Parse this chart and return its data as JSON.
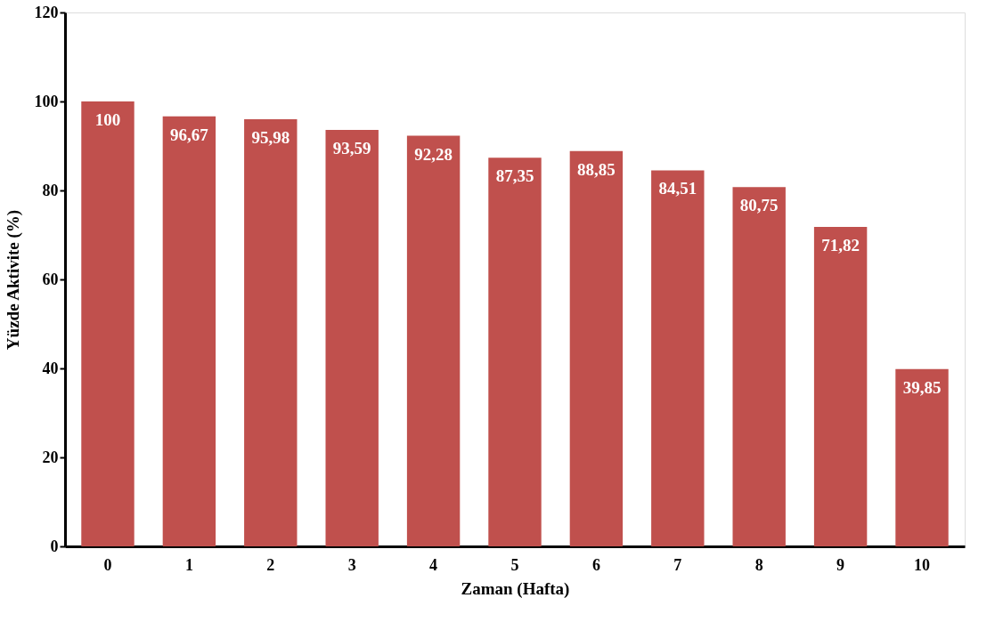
{
  "chart_data": {
    "type": "bar",
    "xlabel": "Zaman (Hafta)",
    "ylabel": "Yüzde Aktivite (%)",
    "categories": [
      "0",
      "1",
      "2",
      "3",
      "4",
      "5",
      "6",
      "7",
      "8",
      "9",
      "10"
    ],
    "values": [
      100,
      96.67,
      95.98,
      93.59,
      92.28,
      87.35,
      88.85,
      84.51,
      80.75,
      71.82,
      39.85
    ],
    "value_labels": [
      "100",
      "96,67",
      "95,98",
      "93,59",
      "92,28",
      "87,35",
      "88,85",
      "84,51",
      "80,75",
      "71,82",
      "39,85"
    ],
    "color": "#c0504d",
    "ylim": [
      0,
      120
    ],
    "yticks": [
      0,
      20,
      40,
      60,
      80,
      100,
      120
    ],
    "grid": false
  }
}
